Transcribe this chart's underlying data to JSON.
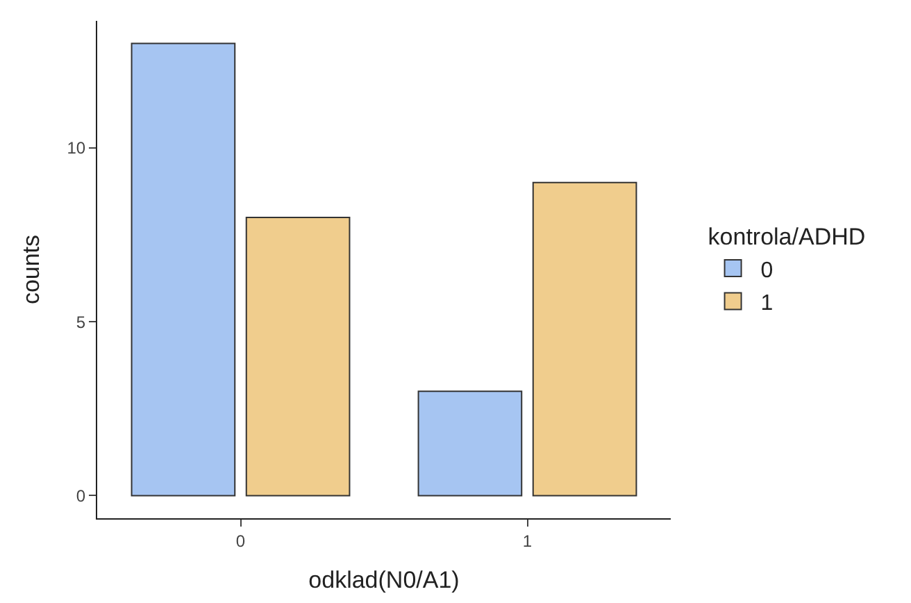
{
  "chart_data": {
    "type": "bar",
    "xlabel": "odklad(N0/A1)",
    "ylabel": "counts",
    "legend_title": "kontrola/ADHD",
    "categories": [
      "0",
      "1"
    ],
    "series": [
      {
        "name": "0",
        "color": "#a6c5f2",
        "values": [
          13,
          3
        ]
      },
      {
        "name": "1",
        "color": "#f0cd8d",
        "values": [
          8,
          9
        ]
      }
    ],
    "ylim": [
      -0.65,
      13.65
    ],
    "yticks": [
      0,
      5,
      10
    ],
    "legend": "right"
  }
}
